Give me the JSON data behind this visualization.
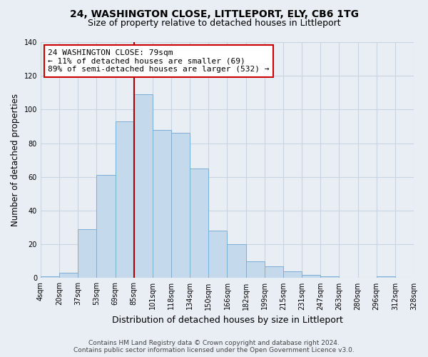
{
  "title": "24, WASHINGTON CLOSE, LITTLEPORT, ELY, CB6 1TG",
  "subtitle": "Size of property relative to detached houses in Littleport",
  "xlabel": "Distribution of detached houses by size in Littleport",
  "ylabel": "Number of detached properties",
  "bar_labels": [
    "4sqm",
    "20sqm",
    "37sqm",
    "53sqm",
    "69sqm",
    "85sqm",
    "101sqm",
    "118sqm",
    "134sqm",
    "150sqm",
    "166sqm",
    "182sqm",
    "199sqm",
    "215sqm",
    "231sqm",
    "247sqm",
    "263sqm",
    "280sqm",
    "296sqm",
    "312sqm",
    "328sqm"
  ],
  "bar_values": [
    1,
    3,
    29,
    61,
    93,
    109,
    88,
    86,
    65,
    28,
    20,
    10,
    7,
    4,
    2,
    1,
    0,
    0,
    1,
    0
  ],
  "bar_color": "#c5d9ec",
  "bar_edge_color": "#7bafd4",
  "property_line_index": 5,
  "annotation_text": "24 WASHINGTON CLOSE: 79sqm\n← 11% of detached houses are smaller (69)\n89% of semi-detached houses are larger (532) →",
  "annotation_box_color": "white",
  "annotation_box_edge_color": "#cc0000",
  "property_line_color": "#aa0000",
  "ylim": [
    0,
    140
  ],
  "yticks": [
    0,
    20,
    40,
    60,
    80,
    100,
    120,
    140
  ],
  "footer_line1": "Contains HM Land Registry data © Crown copyright and database right 2024.",
  "footer_line2": "Contains public sector information licensed under the Open Government Licence v3.0.",
  "bg_color": "#e8eef4",
  "plot_bg_color": "#e8eef4",
  "grid_color": "#c8d4e0",
  "title_fontsize": 10,
  "subtitle_fontsize": 9,
  "tick_fontsize": 7,
  "ylabel_fontsize": 8.5,
  "xlabel_fontsize": 9,
  "annotation_fontsize": 8,
  "footer_fontsize": 6.5
}
